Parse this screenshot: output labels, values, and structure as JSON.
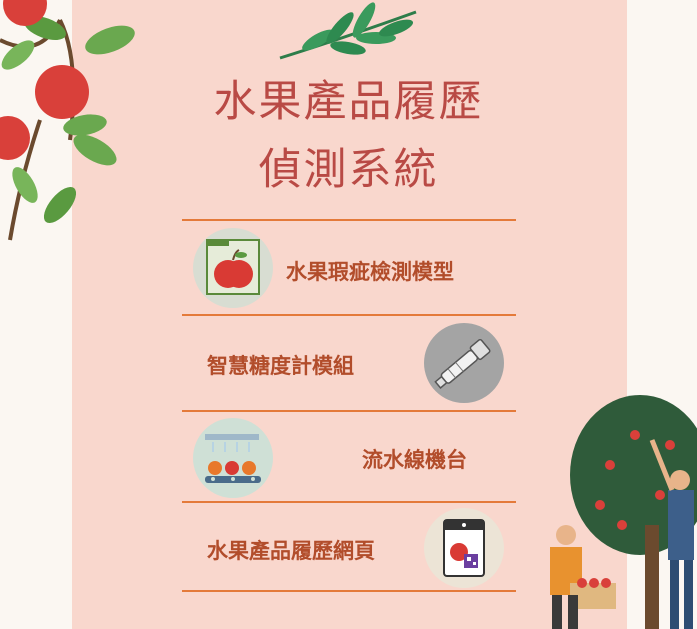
{
  "title_line1": "水果產品履歷",
  "title_line2": "偵測系統",
  "menu": [
    {
      "label": "水果瑕疵檢測模型",
      "icon": "apple-detection-icon"
    },
    {
      "label": "智慧糖度計模組",
      "icon": "refractometer-icon"
    },
    {
      "label": "流水線機台",
      "icon": "conveyor-line-icon"
    },
    {
      "label": "水果產品履歷網頁",
      "icon": "qr-label-icon"
    }
  ],
  "colors": {
    "title": "#b94a45",
    "label": "#b24d2b",
    "rule": "#e47a3a",
    "panel": "#f9d7cd"
  }
}
